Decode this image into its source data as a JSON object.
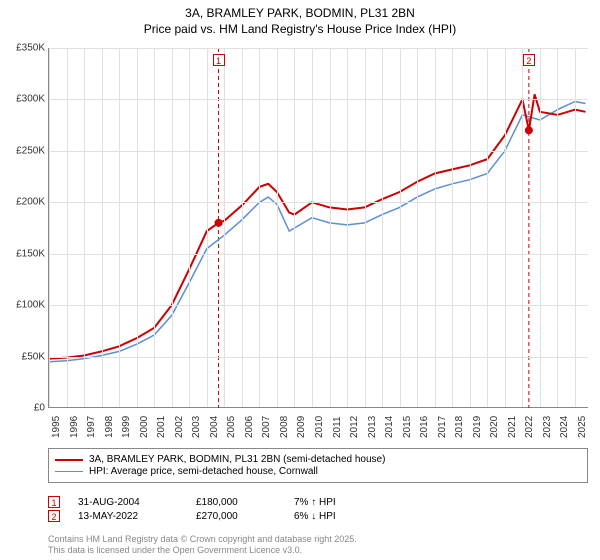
{
  "title": {
    "line1": "3A, BRAMLEY PARK, BODMIN, PL31 2BN",
    "line2": "Price paid vs. HM Land Registry's House Price Index (HPI)"
  },
  "chart": {
    "type": "line",
    "background_color": "#ffffff",
    "grid_color": "#e0e0e0",
    "axis_color": "#888888",
    "xlim": [
      1995,
      2025.8
    ],
    "ylim": [
      0,
      350000
    ],
    "xticks": [
      1995,
      1996,
      1997,
      1998,
      1999,
      2000,
      2001,
      2002,
      2003,
      2004,
      2005,
      2006,
      2007,
      2008,
      2009,
      2010,
      2011,
      2012,
      2013,
      2014,
      2015,
      2016,
      2017,
      2018,
      2019,
      2020,
      2021,
      2022,
      2023,
      2024,
      2025
    ],
    "yticks": [
      0,
      50000,
      100000,
      150000,
      200000,
      250000,
      300000,
      350000
    ],
    "ytick_labels": [
      "£0",
      "£50K",
      "£100K",
      "£150K",
      "£200K",
      "£250K",
      "£300K",
      "£350K"
    ],
    "tick_fontsize": 10,
    "series": [
      {
        "name": "3A, BRAMLEY PARK, BODMIN, PL31 2BN (semi-detached house)",
        "color": "#cc0000",
        "line_width": 2,
        "points": [
          [
            1995,
            48000
          ],
          [
            1996,
            49000
          ],
          [
            1997,
            51000
          ],
          [
            1998,
            55000
          ],
          [
            1999,
            60000
          ],
          [
            2000,
            68000
          ],
          [
            2001,
            78000
          ],
          [
            2002,
            100000
          ],
          [
            2003,
            135000
          ],
          [
            2004,
            172000
          ],
          [
            2004.67,
            180000
          ],
          [
            2005,
            182000
          ],
          [
            2006,
            197000
          ],
          [
            2007,
            215000
          ],
          [
            2007.5,
            218000
          ],
          [
            2008,
            210000
          ],
          [
            2008.7,
            190000
          ],
          [
            2009,
            188000
          ],
          [
            2010,
            200000
          ],
          [
            2011,
            195000
          ],
          [
            2012,
            193000
          ],
          [
            2013,
            195000
          ],
          [
            2014,
            203000
          ],
          [
            2015,
            210000
          ],
          [
            2016,
            220000
          ],
          [
            2017,
            228000
          ],
          [
            2018,
            232000
          ],
          [
            2019,
            236000
          ],
          [
            2020,
            242000
          ],
          [
            2021,
            265000
          ],
          [
            2022,
            300000
          ],
          [
            2022.37,
            270000
          ],
          [
            2022.7,
            305000
          ],
          [
            2023,
            288000
          ],
          [
            2024,
            285000
          ],
          [
            2025,
            290000
          ],
          [
            2025.6,
            288000
          ]
        ]
      },
      {
        "name": "HPI: Average price, semi-detached house, Cornwall",
        "color": "#5b8fd6",
        "line_width": 1.5,
        "points": [
          [
            1995,
            45000
          ],
          [
            1996,
            46000
          ],
          [
            1997,
            48000
          ],
          [
            1998,
            51000
          ],
          [
            1999,
            55000
          ],
          [
            2000,
            62000
          ],
          [
            2001,
            71000
          ],
          [
            2002,
            90000
          ],
          [
            2003,
            122000
          ],
          [
            2004,
            155000
          ],
          [
            2005,
            168000
          ],
          [
            2006,
            183000
          ],
          [
            2007,
            200000
          ],
          [
            2007.5,
            205000
          ],
          [
            2008,
            198000
          ],
          [
            2008.7,
            172000
          ],
          [
            2009,
            175000
          ],
          [
            2010,
            185000
          ],
          [
            2011,
            180000
          ],
          [
            2012,
            178000
          ],
          [
            2013,
            180000
          ],
          [
            2014,
            188000
          ],
          [
            2015,
            195000
          ],
          [
            2016,
            205000
          ],
          [
            2017,
            213000
          ],
          [
            2018,
            218000
          ],
          [
            2019,
            222000
          ],
          [
            2020,
            228000
          ],
          [
            2021,
            250000
          ],
          [
            2022,
            285000
          ],
          [
            2023,
            280000
          ],
          [
            2024,
            290000
          ],
          [
            2025,
            298000
          ],
          [
            2025.6,
            296000
          ]
        ]
      }
    ],
    "event_lines": [
      {
        "x": 2004.67,
        "color": "#cc0000",
        "dash": "4,3"
      },
      {
        "x": 2022.37,
        "color": "#cc0000",
        "dash": "4,3"
      }
    ],
    "event_markers": [
      {
        "label": "1",
        "x": 2004.67,
        "y_chart_top": true,
        "dot_x": 2004.67,
        "dot_y": 180000,
        "color": "#cc0000"
      },
      {
        "label": "2",
        "x": 2022.37,
        "y_chart_top": true,
        "dot_x": 2022.37,
        "dot_y": 270000,
        "color": "#cc0000"
      }
    ]
  },
  "legend": {
    "items": [
      {
        "color": "#cc0000",
        "width": 2,
        "label": "3A, BRAMLEY PARK, BODMIN, PL31 2BN (semi-detached house)"
      },
      {
        "color": "#5b8fd6",
        "width": 1.5,
        "label": "HPI: Average price, semi-detached house, Cornwall"
      }
    ]
  },
  "data_rows": [
    {
      "marker": "1",
      "marker_color": "#cc0000",
      "date": "31-AUG-2004",
      "price": "£180,000",
      "delta": "7% ↑ HPI"
    },
    {
      "marker": "2",
      "marker_color": "#cc0000",
      "date": "13-MAY-2022",
      "price": "£270,000",
      "delta": "6% ↓ HPI"
    }
  ],
  "footer": {
    "line1": "Contains HM Land Registry data © Crown copyright and database right 2025.",
    "line2": "This data is licensed under the Open Government Licence v3.0."
  }
}
